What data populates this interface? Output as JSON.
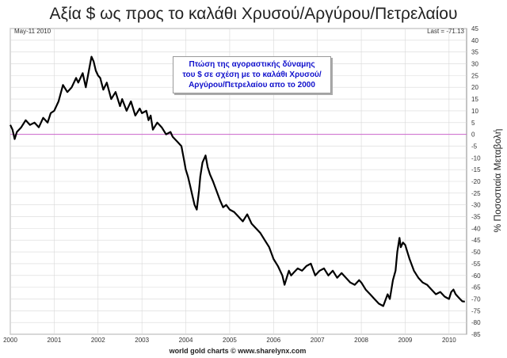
{
  "chart_data": {
    "type": "line",
    "title": "Αξία $ ως προς το καλάθι Χρυσού/Αργύρου/Πετρελαίου",
    "date_label": "May-11 2010",
    "last_label": "Last = -71.13",
    "ylabel": "% Ποσοστιαία Μεταβολή",
    "annotation": [
      "Πτώση της αγοραστικής δύναμης",
      "του $ σε σχέση με το καλάθι Χρυσού/",
      "Αργύρου/Πετρελαίου απο το 2000"
    ],
    "credit": "world gold charts © www.sharelynx.com",
    "xlim": [
      2000.0,
      2010.4
    ],
    "ylim": [
      -85,
      45
    ],
    "x_ticks": [
      2000,
      2001,
      2002,
      2003,
      2004,
      2005,
      2006,
      2007,
      2008,
      2009,
      2010
    ],
    "x_tick_labels": [
      "2000",
      "2001",
      "2002",
      "2003",
      "2004",
      "2005",
      "2006",
      "2007",
      "2008",
      "2009",
      "2010"
    ],
    "y_ticks": [
      45,
      40,
      35,
      30,
      25,
      20,
      15,
      10,
      5,
      0,
      -5,
      -10,
      -15,
      -20,
      -25,
      -30,
      -35,
      -40,
      -45,
      -50,
      -55,
      -60,
      -65,
      -70,
      -75,
      -80,
      -85
    ],
    "y_tick_labels": [
      "45",
      "40",
      "35",
      "30",
      "25",
      "20",
      "15",
      "10",
      "5",
      "0",
      "-5",
      "-10",
      "-15",
      "-20",
      "-25",
      "-30",
      "-35",
      "-40",
      "-45",
      "-50",
      "-55",
      "-60",
      "-65",
      "-70",
      "-75",
      "-80",
      "-85"
    ],
    "reference_line": 0,
    "grid": true,
    "colors": {
      "line": "#000000",
      "reference": "#cc66cc",
      "grid": "#d8d8d8",
      "annotation_text": "#1111cc"
    },
    "series": [
      {
        "x": [
          2000.0,
          2000.05,
          2000.1,
          2000.15,
          2000.25,
          2000.35,
          2000.45,
          2000.55,
          2000.65,
          2000.75,
          2000.85,
          2000.92,
          2001.0,
          2001.1,
          2001.2,
          2001.3,
          2001.4,
          2001.5,
          2001.55,
          2001.65,
          2001.72,
          2001.8,
          2001.85,
          2001.9,
          2001.95,
          2002.0,
          2002.05,
          2002.12,
          2002.2,
          2002.3,
          2002.4,
          2002.5,
          2002.55,
          2002.65,
          2002.75,
          2002.85,
          2002.95,
          2003.0,
          2003.1,
          2003.15,
          2003.2,
          2003.25,
          2003.35,
          2003.45,
          2003.55,
          2003.65,
          2003.7,
          2003.8,
          2003.9,
          2003.95,
          2004.0,
          2004.05,
          2004.1,
          2004.15,
          2004.2,
          2004.25,
          2004.3,
          2004.33,
          2004.38,
          2004.45,
          2004.5,
          2004.55,
          2004.62,
          2004.7,
          2004.78,
          2004.85,
          2004.92,
          2005.0,
          2005.1,
          2005.2,
          2005.3,
          2005.4,
          2005.5,
          2005.6,
          2005.7,
          2005.8,
          2005.9,
          2006.0,
          2006.1,
          2006.2,
          2006.25,
          2006.3,
          2006.35,
          2006.4,
          2006.45,
          2006.55,
          2006.65,
          2006.75,
          2006.85,
          2006.95,
          2007.05,
          2007.15,
          2007.25,
          2007.35,
          2007.45,
          2007.55,
          2007.65,
          2007.75,
          2007.85,
          2007.95,
          2008.0,
          2008.1,
          2008.2,
          2008.3,
          2008.4,
          2008.5,
          2008.6,
          2008.65,
          2008.72,
          2008.78,
          2008.82,
          2008.87,
          2008.9,
          2008.95,
          2009.0,
          2009.05,
          2009.1,
          2009.2,
          2009.3,
          2009.4,
          2009.5,
          2009.6,
          2009.7,
          2009.8,
          2009.9,
          2010.0,
          2010.05,
          2010.1,
          2010.15,
          2010.2,
          2010.25,
          2010.3,
          2010.36
        ],
        "y": [
          4,
          2,
          -2,
          1,
          3,
          6,
          4,
          5,
          3,
          7,
          5,
          9,
          10,
          14,
          21,
          18,
          20,
          24,
          22,
          26,
          20,
          28,
          33,
          31,
          27,
          25,
          24,
          19,
          22,
          15,
          18,
          12,
          15,
          10,
          14,
          8,
          11,
          9,
          10,
          6,
          8,
          2,
          5,
          3,
          0,
          1,
          -1,
          -3,
          -5,
          -10,
          -15,
          -18,
          -22,
          -26,
          -30,
          -32,
          -24,
          -18,
          -12,
          -9,
          -14,
          -17,
          -20,
          -24,
          -28,
          -31,
          -30,
          -32,
          -33,
          -35,
          -37,
          -34,
          -38,
          -40,
          -42,
          -45,
          -48,
          -53,
          -56,
          -60,
          -64,
          -61,
          -58,
          -60,
          -59,
          -57,
          -58,
          -56,
          -55,
          -60,
          -58,
          -57,
          -60,
          -58,
          -61,
          -59,
          -61,
          -63,
          -64,
          -62,
          -63,
          -66,
          -68,
          -70,
          -72,
          -73,
          -68,
          -70,
          -62,
          -58,
          -50,
          -44,
          -48,
          -46,
          -47,
          -50,
          -53,
          -58,
          -61,
          -63,
          -64,
          -66,
          -68,
          -67,
          -69,
          -70,
          -67,
          -66,
          -68,
          -69,
          -70,
          -71,
          -71.13
        ]
      }
    ]
  }
}
